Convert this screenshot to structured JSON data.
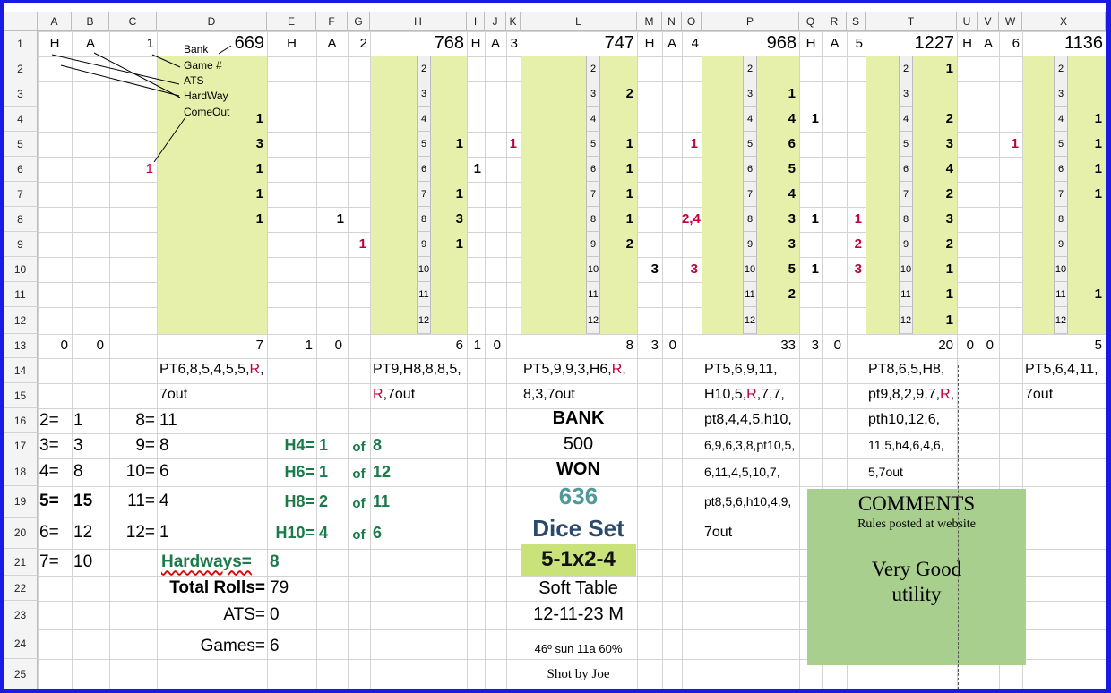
{
  "columns": [
    "A",
    "B",
    "C",
    "D",
    "E",
    "F",
    "G",
    "H",
    "I",
    "J",
    "K",
    "L",
    "M",
    "N",
    "O",
    "P",
    "Q",
    "R",
    "S",
    "T",
    "U",
    "V",
    "W",
    "X"
  ],
  "rows": [
    "1",
    "2",
    "3",
    "4",
    "5",
    "6",
    "7",
    "8",
    "9",
    "10",
    "11",
    "12",
    "13",
    "14",
    "15",
    "16",
    "17",
    "18",
    "19",
    "20",
    "21",
    "22",
    "23",
    "24",
    "25"
  ],
  "legend": {
    "h": "H",
    "a": "A",
    "game": "1",
    "bank": "Bank",
    "game_no": "Game #",
    "ats": "ATS",
    "hardway": "HardWay",
    "comeout": "ComeOut"
  },
  "games": [
    {
      "h": "H",
      "a": "A",
      "num": "1",
      "bank": "669",
      "ats_h": "0",
      "ats_a": "0",
      "total": "7",
      "seq1": "PT6,8,5,4,5,5,",
      "seq1_red": "R",
      "seq1_end": ",",
      "seq2": "7out",
      "seq2_red": "",
      "seq2_end": ""
    },
    {
      "h": "H",
      "a": "A",
      "num": "2",
      "bank": "768",
      "ats_h": "1",
      "ats_a": "0",
      "total": "6",
      "seq1": "PT9,H8,8,8,5,",
      "seq1_red": "",
      "seq1_end": "",
      "seq2": "",
      "seq2_red": "R",
      "seq2_end": ",7out"
    },
    {
      "h": "H",
      "a": "A",
      "num": "3",
      "bank": "747",
      "ats_h": "1",
      "ats_a": "0",
      "total": "8",
      "seq1": "PT5,9,9,3,H6,",
      "seq1_red": "R",
      "seq1_end": ",",
      "seq2": "8,3,7out",
      "seq2_red": "",
      "seq2_end": ""
    },
    {
      "h": "H",
      "a": "A",
      "num": "4",
      "bank": "968",
      "ats_h": "3",
      "ats_a": "0",
      "total": "33",
      "seq1": "PT5,6,9,11,",
      "seq1_red": "",
      "seq1_end": "",
      "seq2": "H10,5,",
      "seq2_red": "R",
      "seq2_end": ",7,7,"
    },
    {
      "h": "H",
      "a": "A",
      "num": "5",
      "bank": "1227",
      "ats_h": "3",
      "ats_a": "0",
      "total": "20",
      "seq1": "PT8,6,5,H8,",
      "seq1_red": "",
      "seq1_end": "",
      "seq2": "pt9,8,2,9,7,",
      "seq2_red": "R",
      "seq2_end": ","
    },
    {
      "h": "H",
      "a": "A",
      "num": "6",
      "bank": "1136",
      "ats_h": "0",
      "ats_a": "0",
      "total": "5",
      "seq1": "PT5,6,4,11,",
      "seq1_red": "",
      "seq1_end": "",
      "seq2": "7out",
      "seq2_red": "",
      "seq2_end": ""
    }
  ],
  "strip_numbers": [
    "2",
    "3",
    "4",
    "5",
    "6",
    "7",
    "8",
    "9",
    "10",
    "11",
    "12"
  ],
  "game1_counts": [
    "",
    "",
    "1",
    "3",
    "1",
    "1",
    "1",
    "",
    "",
    "",
    ""
  ],
  "game1_comeout": {
    "six": "1"
  },
  "game2_counts": [
    "",
    "",
    "",
    "1",
    "",
    "1",
    "3",
    "1",
    "",
    "",
    ""
  ],
  "game2_side": {
    "e8": "1",
    "g9": "1",
    "k5": "1",
    "i6": "1"
  },
  "game3_counts": [
    "",
    "2",
    "",
    "1",
    "1",
    "1",
    "1",
    "2",
    "",
    "",
    ""
  ],
  "game3_side": {
    "m10": "3",
    "o5": "1",
    "o8": "2,4",
    "o10": "3"
  },
  "game4_counts": [
    "",
    "1",
    "4",
    "6",
    "5",
    "4",
    "3",
    "3",
    "5",
    "2",
    ""
  ],
  "game4_side": {
    "q4": "1",
    "q8": "1",
    "q10": "1",
    "s8": "1",
    "s9": "2",
    "s10": "3"
  },
  "game5_counts": [
    "1",
    "",
    "2",
    "3",
    "4",
    "2",
    "3",
    "2",
    "1",
    "1",
    "1"
  ],
  "game5_side": {
    "w5": "1"
  },
  "game6_counts": [
    "",
    "",
    "1",
    "1",
    "1",
    "1",
    "",
    "",
    "",
    "1",
    ""
  ],
  "game4_extra": [
    "pt8,4,4,5,h10,",
    "6,9,6,3,8,pt10,5,",
    "6,11,4,5,10,7,",
    "pt8,5,6,h10,4,9,",
    "7out"
  ],
  "game5_extra": [
    "pth10,12,6,",
    "11,5,h4,6,4,6,",
    "5,7out"
  ],
  "stats": {
    "left": [
      {
        "k": "2=",
        "v": "1"
      },
      {
        "k": "3=",
        "v": "3"
      },
      {
        "k": "4=",
        "v": "8"
      },
      {
        "k": "5=",
        "v": "15"
      },
      {
        "k": "6=",
        "v": "12"
      },
      {
        "k": "7=",
        "v": "10"
      }
    ],
    "right": [
      {
        "k": "8=",
        "v": "11"
      },
      {
        "k": "9=",
        "v": "8"
      },
      {
        "k": "10=",
        "v": "6"
      },
      {
        "k": "11=",
        "v": "4"
      },
      {
        "k": "12=",
        "v": "1"
      }
    ],
    "hards": [
      {
        "k": "H4=",
        "n": "1",
        "of": "of",
        "t": "8"
      },
      {
        "k": "H6=",
        "n": "1",
        "of": "of",
        "t": "12"
      },
      {
        "k": "H8=",
        "n": "2",
        "of": "of",
        "t": "11"
      },
      {
        "k": "H10=",
        "n": "4",
        "of": "of",
        "t": "6"
      }
    ],
    "hardways_label": "Hardways=",
    "hardways_value": "8",
    "total_rolls_label": "Total Rolls=",
    "total_rolls_value": "79",
    "ats_label": "ATS=",
    "ats_value": "0",
    "games_label": "Games=",
    "games_value": "6"
  },
  "summary": {
    "bank_label": "BANK",
    "bank_value": "500",
    "won_label": "WON",
    "won_value": "636",
    "dice_set_label": "Dice Set",
    "dice_set_value": "5-1x2-4",
    "table": "Soft Table",
    "date": "12-11-23 M",
    "weather": "46º sun 11a 60%",
    "shooter": "Shot by Joe"
  },
  "comments": {
    "title": "COMMENTS",
    "subtitle": "Rules posted at website",
    "body1": "Very Good",
    "body2": "utility"
  },
  "colors": {
    "green_fill": "#e6f0ab",
    "comment_box": "#a9cf8e",
    "red_text": "#c0003c",
    "teal_text": "#1b7a4a",
    "won_color": "#4f9a99",
    "dice_color": "#2b4a6b",
    "dice_value_fill": "#c9e37a"
  }
}
